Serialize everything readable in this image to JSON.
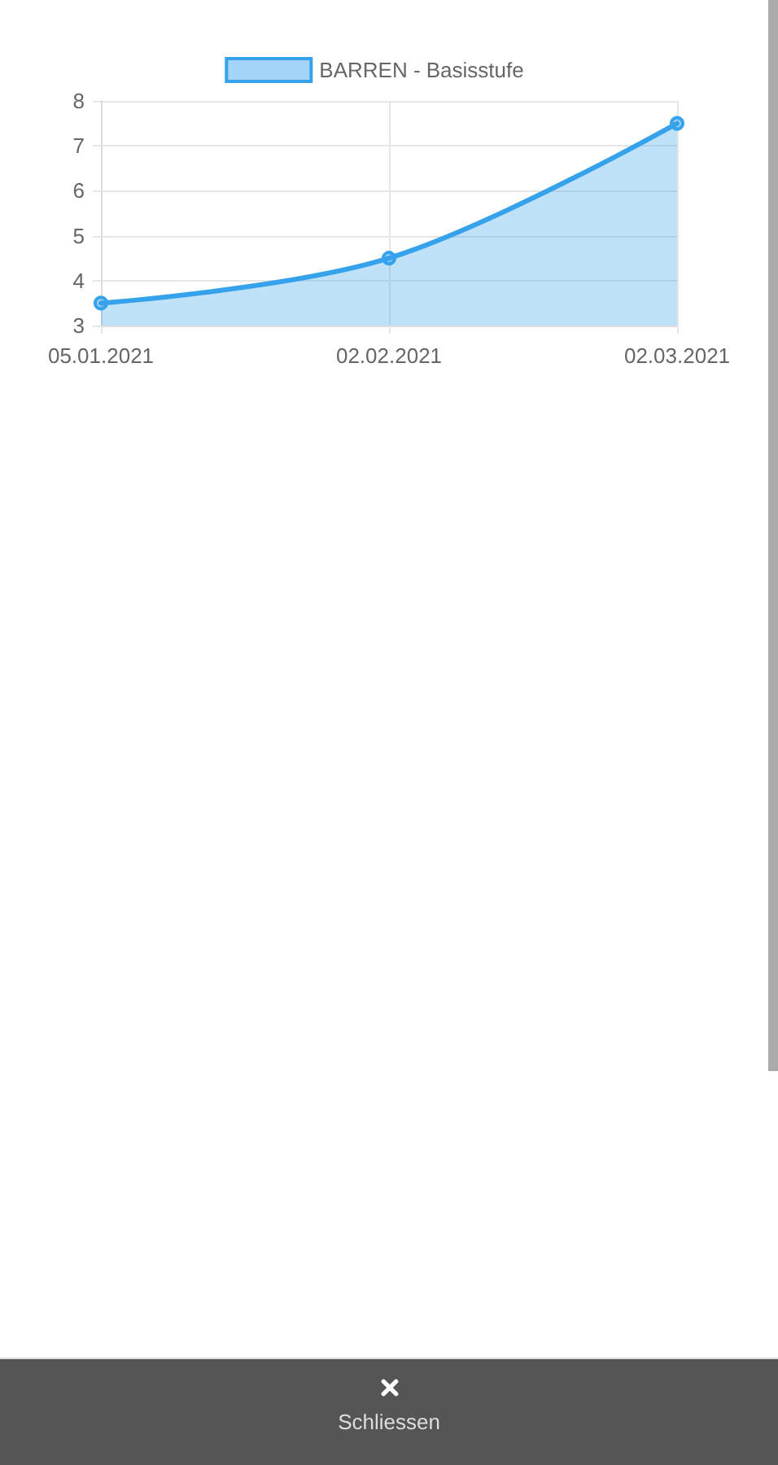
{
  "chart_data": {
    "type": "area",
    "categories": [
      "05.01.2021",
      "02.02.2021",
      "02.03.2021"
    ],
    "series": [
      {
        "name": "BARREN - Basisstufe",
        "color": "#36a2eb",
        "values": [
          3.5,
          4.5,
          7.5
        ]
      }
    ],
    "ylim": [
      3,
      8
    ],
    "yticks": [
      3,
      4,
      5,
      6,
      7,
      8
    ],
    "grid": true,
    "legend": "top",
    "marker": "circle",
    "annotations": [
      "Schliessen"
    ]
  }
}
